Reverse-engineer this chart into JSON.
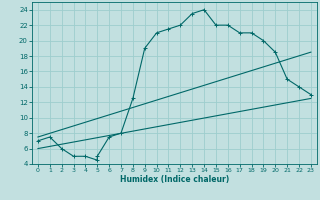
{
  "xlabel": "Humidex (Indice chaleur)",
  "bg_color": "#c2e0e0",
  "grid_color": "#9ecece",
  "line_color": "#006868",
  "xlim": [
    -0.5,
    23.5
  ],
  "ylim": [
    4,
    25
  ],
  "xticks": [
    0,
    1,
    2,
    3,
    4,
    5,
    6,
    7,
    8,
    9,
    10,
    11,
    12,
    13,
    14,
    15,
    16,
    17,
    18,
    19,
    20,
    21,
    22,
    23
  ],
  "yticks": [
    4,
    6,
    8,
    10,
    12,
    14,
    16,
    18,
    20,
    22,
    24
  ],
  "line1_x": [
    0,
    1,
    2,
    3,
    4,
    5,
    5,
    6,
    7,
    8,
    9,
    10,
    11,
    12,
    13,
    14,
    15,
    16,
    17,
    18,
    19,
    20,
    21,
    22,
    23
  ],
  "line1_y": [
    7,
    7.5,
    6,
    5,
    5,
    4.5,
    5,
    7.5,
    8,
    12.5,
    19,
    21,
    21.5,
    22,
    23.5,
    24,
    22,
    22,
    21,
    21,
    20,
    18.5,
    15,
    14,
    13
  ],
  "line2_x": [
    0,
    23
  ],
  "line2_y": [
    7.5,
    18.5
  ],
  "line3_x": [
    0,
    23
  ],
  "line3_y": [
    6,
    12.5
  ],
  "marker": "+"
}
